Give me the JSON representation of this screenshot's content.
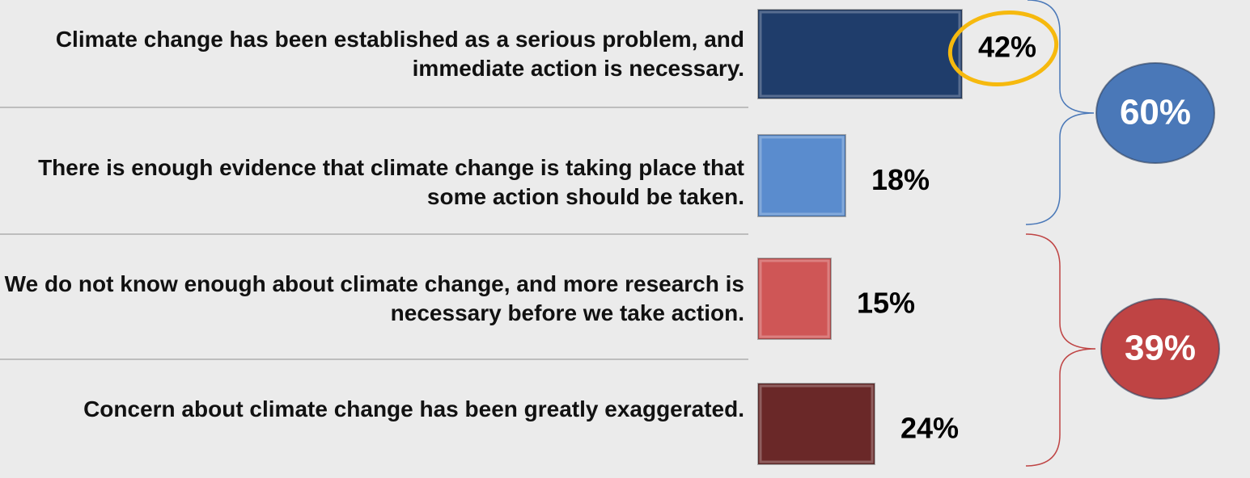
{
  "chart_data": {
    "type": "barh",
    "categories": [
      "Climate change has been established as a serious problem, and immediate action is necessary.",
      "There is enough evidence that climate change is taking place that some action should be taken.",
      "We do not know enough about climate change, and more research is necessary before we take action.",
      "Concern about climate change has been greatly exaggerated."
    ],
    "values": [
      42,
      18,
      15,
      24
    ],
    "value_labels": [
      "42%",
      "18%",
      "15%",
      "24%"
    ],
    "colors": [
      "#1f3d6b",
      "#5a8cce",
      "#cf5656",
      "#6a2828"
    ],
    "xlim": [
      0,
      100
    ],
    "groups": [
      {
        "value": 60,
        "label": "60%",
        "color": "#4a78b8"
      },
      {
        "value": 39,
        "label": "39%",
        "color": "#bf4444"
      }
    ]
  }
}
